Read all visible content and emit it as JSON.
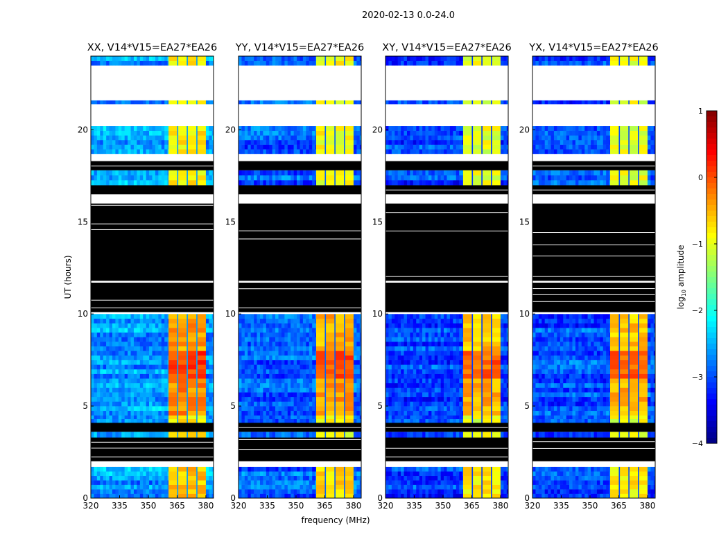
{
  "chart_data": {
    "type": "heatmap",
    "suptitle": "2020-02-13 0.0-24.0",
    "xlabel": "frequency (MHz)",
    "ylabel": "UT (hours)",
    "xlim": [
      320,
      384
    ],
    "ylim": [
      0,
      24
    ],
    "xticks": [
      "320",
      "335",
      "350",
      "365",
      "380"
    ],
    "xtick_values": [
      320,
      335,
      350,
      365,
      380
    ],
    "yticks": [
      "0",
      "5",
      "10",
      "15",
      "20"
    ],
    "ytick_values": [
      0,
      5,
      10,
      15,
      20
    ],
    "colorbar": {
      "label": "log10 amplitude",
      "label_main": "log",
      "label_sub": "10",
      "label_rest": " amplitude",
      "range": [
        -4,
        1
      ],
      "ticks": [
        "1",
        "0",
        "−1",
        "−2",
        "−3",
        "−4"
      ],
      "tick_values": [
        1,
        0,
        -1,
        -2,
        -3,
        -4
      ],
      "colormap": "jet"
    },
    "freq_blocks": [
      {
        "f0": 320,
        "f1": 360.5,
        "region": "low"
      },
      {
        "f0": 360.5,
        "f1": 365,
        "region": "high"
      },
      {
        "f0": 365,
        "f1": 365.6,
        "region": "gap"
      },
      {
        "f0": 365.6,
        "f1": 370,
        "region": "high"
      },
      {
        "f0": 370,
        "f1": 370.6,
        "region": "gap"
      },
      {
        "f0": 370.6,
        "f1": 375,
        "region": "high"
      },
      {
        "f0": 375,
        "f1": 375.6,
        "region": "gap"
      },
      {
        "f0": 375.6,
        "f1": 380,
        "region": "high"
      },
      {
        "f0": 380,
        "f1": 384,
        "region": "low"
      }
    ],
    "time_bands": [
      {
        "t0": 0.0,
        "t1": 1.7,
        "state": "data",
        "boost": 0.2
      },
      {
        "t0": 1.7,
        "t1": 2.0,
        "state": "blank"
      },
      {
        "t0": 2.0,
        "t1": 3.3,
        "state": "flagged"
      },
      {
        "t0": 3.3,
        "t1": 3.6,
        "state": "data",
        "boost": 0
      },
      {
        "t0": 3.6,
        "t1": 4.1,
        "state": "flagged"
      },
      {
        "t0": 4.1,
        "t1": 4.5,
        "state": "data",
        "boost": 0
      },
      {
        "t0": 4.5,
        "t1": 6.5,
        "state": "data",
        "boost": 0.5
      },
      {
        "t0": 6.5,
        "t1": 8.0,
        "state": "data",
        "boost": 0.9
      },
      {
        "t0": 8.0,
        "t1": 10.0,
        "state": "data",
        "boost": 0.4
      },
      {
        "t0": 10.0,
        "t1": 10.1,
        "state": "blank"
      },
      {
        "t0": 10.1,
        "t1": 11.7,
        "state": "flagged"
      },
      {
        "t0": 11.7,
        "t1": 11.8,
        "state": "blank"
      },
      {
        "t0": 11.8,
        "t1": 16.0,
        "state": "flagged"
      },
      {
        "t0": 16.0,
        "t1": 16.5,
        "state": "blank"
      },
      {
        "t0": 16.5,
        "t1": 17.0,
        "state": "flagged"
      },
      {
        "t0": 17.0,
        "t1": 17.8,
        "state": "data",
        "boost": 0
      },
      {
        "t0": 17.8,
        "t1": 18.3,
        "state": "flagged"
      },
      {
        "t0": 18.3,
        "t1": 18.7,
        "state": "blank"
      },
      {
        "t0": 18.7,
        "t1": 20.2,
        "state": "data",
        "boost": 0
      },
      {
        "t0": 20.2,
        "t1": 21.4,
        "state": "blank"
      },
      {
        "t0": 21.4,
        "t1": 21.6,
        "state": "data",
        "boost": 0
      },
      {
        "t0": 21.6,
        "t1": 23.5,
        "state": "blank"
      },
      {
        "t0": 23.5,
        "t1": 24.0,
        "state": "data",
        "boost": 0
      }
    ],
    "panels": [
      {
        "title": "XX, V14*V15=EA27*EA26",
        "low": -2.6,
        "high": -0.9
      },
      {
        "title": "YY, V14*V15=EA27*EA26",
        "low": -2.9,
        "high": -1.0
      },
      {
        "title": "XY, V14*V15=EA27*EA26",
        "low": -3.1,
        "high": -1.1
      },
      {
        "title": "YX, V14*V15=EA27*EA26",
        "low": -3.0,
        "high": -1.1
      }
    ]
  }
}
